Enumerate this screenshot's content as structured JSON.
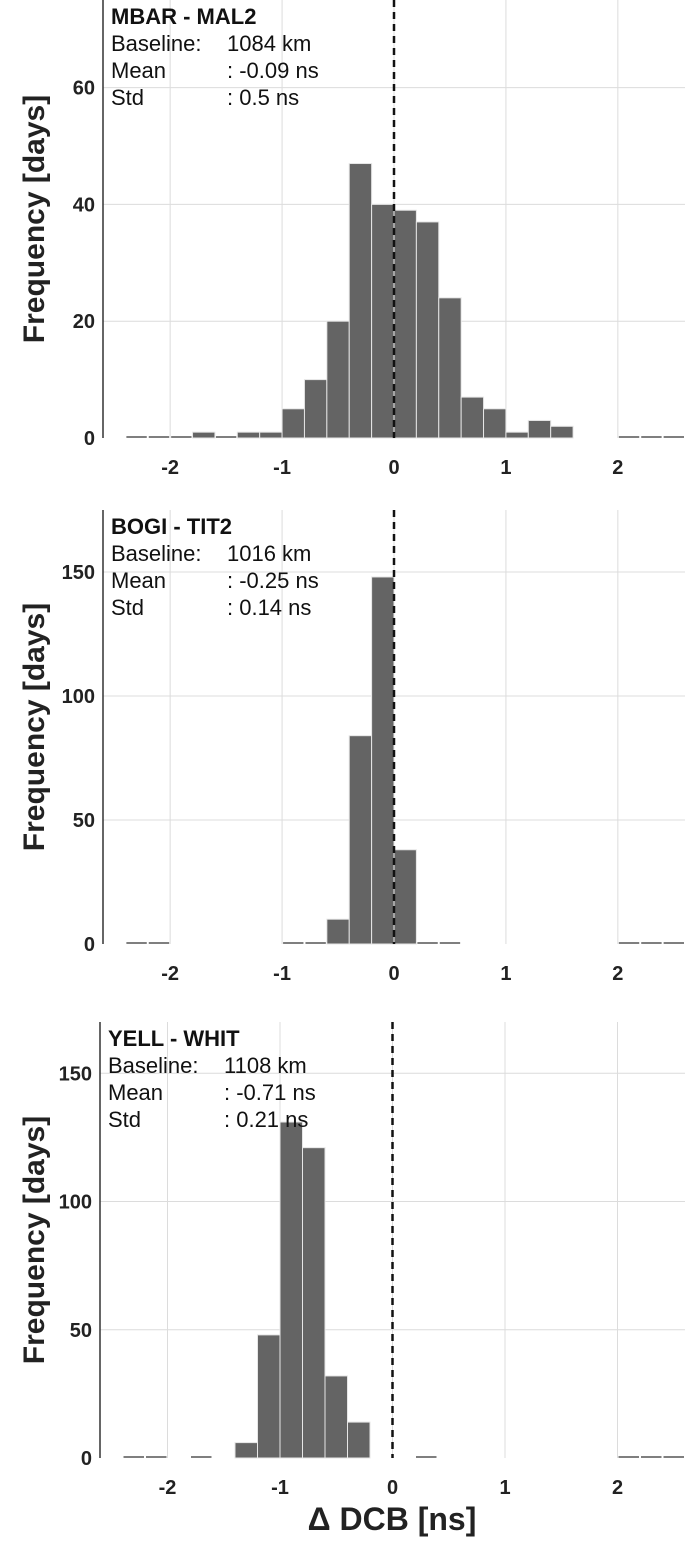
{
  "figure": {
    "xlabel": "Δ DCB [ns]"
  },
  "chart_data": [
    {
      "type": "bar",
      "title": "MBAR - MAL2",
      "annotations": {
        "baseline_label": "Baseline:",
        "baseline_value": "1084 km",
        "mean_label": "Mean",
        "mean_value": ": -0.09 ns",
        "std_label": "Std",
        "std_value": ": 0.5 ns"
      },
      "xlabel": "",
      "ylabel": "Frequency [days]",
      "xlim": [
        -2.6,
        2.6
      ],
      "ylim": [
        0,
        75
      ],
      "xticks": [
        -2,
        -1,
        0,
        1,
        2
      ],
      "xtick_labels": [
        "-2",
        "-1",
        "0",
        "1",
        "2"
      ],
      "yticks": [
        0,
        20,
        40,
        60
      ],
      "ytick_labels": [
        "0",
        "20",
        "40",
        "60"
      ],
      "grid": true,
      "dashed_reference_x": 0,
      "bin_width": 0.2,
      "bins": [
        {
          "center": -2.3,
          "value": 0
        },
        {
          "center": -2.1,
          "value": 0
        },
        {
          "center": -1.9,
          "value": 0
        },
        {
          "center": -1.7,
          "value": 1
        },
        {
          "center": -1.5,
          "value": 0
        },
        {
          "center": -1.3,
          "value": 1
        },
        {
          "center": -1.1,
          "value": 1
        },
        {
          "center": -0.9,
          "value": 5
        },
        {
          "center": -0.7,
          "value": 10
        },
        {
          "center": -0.5,
          "value": 20
        },
        {
          "center": -0.3,
          "value": 47
        },
        {
          "center": -0.1,
          "value": 40
        },
        {
          "center": 0.1,
          "value": 39
        },
        {
          "center": 0.3,
          "value": 37
        },
        {
          "center": 0.5,
          "value": 24
        },
        {
          "center": 0.7,
          "value": 7
        },
        {
          "center": 0.9,
          "value": 5
        },
        {
          "center": 1.1,
          "value": 1
        },
        {
          "center": 1.3,
          "value": 3
        },
        {
          "center": 1.5,
          "value": 2
        },
        {
          "center": 2.1,
          "value": 0
        },
        {
          "center": 2.3,
          "value": 0
        },
        {
          "center": 2.5,
          "value": 0
        }
      ]
    },
    {
      "type": "bar",
      "title": "BOGI - TIT2",
      "annotations": {
        "baseline_label": "Baseline:",
        "baseline_value": "1016 km",
        "mean_label": "Mean",
        "mean_value": ": -0.25 ns",
        "std_label": "Std",
        "std_value": ": 0.14 ns"
      },
      "xlabel": "",
      "ylabel": "Frequency [days]",
      "xlim": [
        -2.6,
        2.6
      ],
      "ylim": [
        0,
        175
      ],
      "xticks": [
        -2,
        -1,
        0,
        1,
        2
      ],
      "xtick_labels": [
        "-2",
        "-1",
        "0",
        "1",
        "2"
      ],
      "yticks": [
        0,
        50,
        100,
        150
      ],
      "ytick_labels": [
        "0",
        "50",
        "100",
        "150"
      ],
      "grid": true,
      "dashed_reference_x": 0,
      "bin_width": 0.2,
      "bins": [
        {
          "center": -2.3,
          "value": 0
        },
        {
          "center": -2.1,
          "value": 0
        },
        {
          "center": -0.9,
          "value": 0
        },
        {
          "center": -0.7,
          "value": 0
        },
        {
          "center": -0.5,
          "value": 10
        },
        {
          "center": -0.3,
          "value": 84
        },
        {
          "center": -0.1,
          "value": 148
        },
        {
          "center": 0.1,
          "value": 38
        },
        {
          "center": 0.3,
          "value": 0
        },
        {
          "center": 0.5,
          "value": 0
        },
        {
          "center": 2.1,
          "value": 0
        },
        {
          "center": 2.3,
          "value": 0
        },
        {
          "center": 2.5,
          "value": 0
        }
      ]
    },
    {
      "type": "bar",
      "title": "YELL - WHIT",
      "annotations": {
        "baseline_label": "Baseline:",
        "baseline_value": "1108 km",
        "mean_label": "Mean",
        "mean_value": ": -0.71 ns",
        "std_label": "Std",
        "std_value": ": 0.21 ns"
      },
      "xlabel": "Δ DCB [ns]",
      "ylabel": "Frequency [days]",
      "xlim": [
        -2.6,
        2.6
      ],
      "ylim": [
        0,
        170
      ],
      "xticks": [
        -2,
        -1,
        0,
        1,
        2
      ],
      "xtick_labels": [
        "-2",
        "-1",
        "0",
        "1",
        "2"
      ],
      "yticks": [
        0,
        50,
        100,
        150
      ],
      "ytick_labels": [
        "0",
        "50",
        "100",
        "150"
      ],
      "grid": true,
      "dashed_reference_x": 0,
      "bin_width": 0.2,
      "bins": [
        {
          "center": -2.3,
          "value": 0
        },
        {
          "center": -2.1,
          "value": 0
        },
        {
          "center": -1.7,
          "value": 0
        },
        {
          "center": -1.3,
          "value": 6
        },
        {
          "center": -1.1,
          "value": 48
        },
        {
          "center": -0.9,
          "value": 131
        },
        {
          "center": -0.7,
          "value": 121
        },
        {
          "center": -0.5,
          "value": 32
        },
        {
          "center": -0.3,
          "value": 14
        },
        {
          "center": 0.3,
          "value": 0
        },
        {
          "center": 2.1,
          "value": 0
        },
        {
          "center": 2.3,
          "value": 0
        },
        {
          "center": 2.5,
          "value": 0
        }
      ]
    }
  ],
  "colors": {
    "bar_fill": "#646464",
    "bar_edge": "#e6e6e6",
    "grid": "#dcdcdc",
    "axis": "#333333",
    "dashed_line": "#111111",
    "text": "#222222"
  }
}
